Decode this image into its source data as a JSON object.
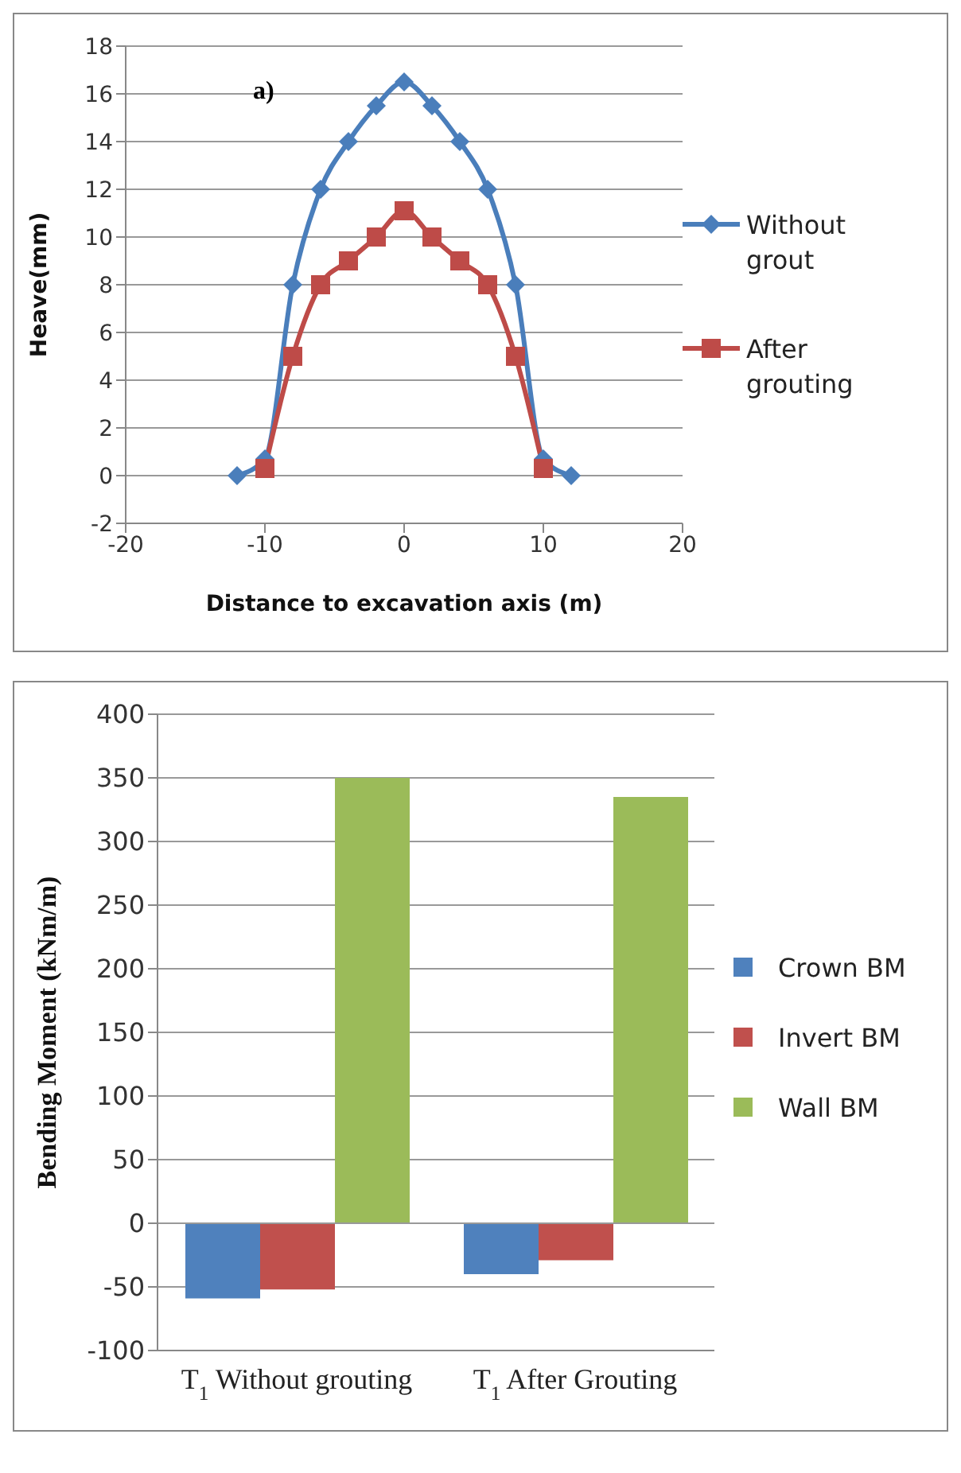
{
  "chart_data": [
    {
      "type": "line",
      "xlabel": "Distance to excavation axis (m)",
      "ylabel": "Heave(mm)",
      "annotations": [
        "a)"
      ],
      "xlim": [
        -20,
        20
      ],
      "xticks": [
        -20,
        -10,
        0,
        10,
        20
      ],
      "ylim": [
        -2,
        18
      ],
      "yticks": [
        -2,
        0,
        2,
        4,
        6,
        8,
        10,
        12,
        14,
        16,
        18
      ],
      "grid": "y",
      "legend": "right",
      "line_style": "solid",
      "series": [
        {
          "name": "Without grout",
          "color": "#4a7ebb",
          "marker": "diamond",
          "x": [
            -12,
            -10,
            -8,
            -6,
            -4,
            -2,
            0,
            2,
            4,
            6,
            8,
            10,
            12
          ],
          "values": [
            0,
            0.7,
            8,
            12,
            14,
            15.5,
            16.5,
            15.5,
            14,
            12,
            8,
            0.7,
            0
          ]
        },
        {
          "name": "After grouting",
          "color": "#be4b48",
          "marker": "square",
          "x": [
            -10,
            -8,
            -6,
            -4,
            -2,
            0,
            2,
            4,
            6,
            8,
            10
          ],
          "values": [
            0.3,
            5,
            8,
            9,
            10,
            11.1,
            10,
            9,
            8,
            5,
            0.3
          ]
        }
      ]
    },
    {
      "type": "bar",
      "ylabel": "Bending Moment (kNm/m)",
      "categories": [
        "T$_{1}$ Without grouting",
        "T$_{1}$ After Grouting"
      ],
      "ylim": [
        -100,
        400
      ],
      "yticks": [
        -100,
        -50,
        0,
        50,
        100,
        150,
        200,
        250,
        300,
        350,
        400
      ],
      "grid": "y",
      "legend": "right",
      "series": [
        {
          "name": "Crown BM",
          "color": "#4f81bd",
          "values": [
            -59,
            -40
          ]
        },
        {
          "name": "Invert BM",
          "color": "#c0504d",
          "values": [
            -52,
            -29
          ]
        },
        {
          "name": "Wall BM",
          "color": "#9bbb59",
          "values": [
            350,
            335
          ]
        }
      ]
    }
  ]
}
